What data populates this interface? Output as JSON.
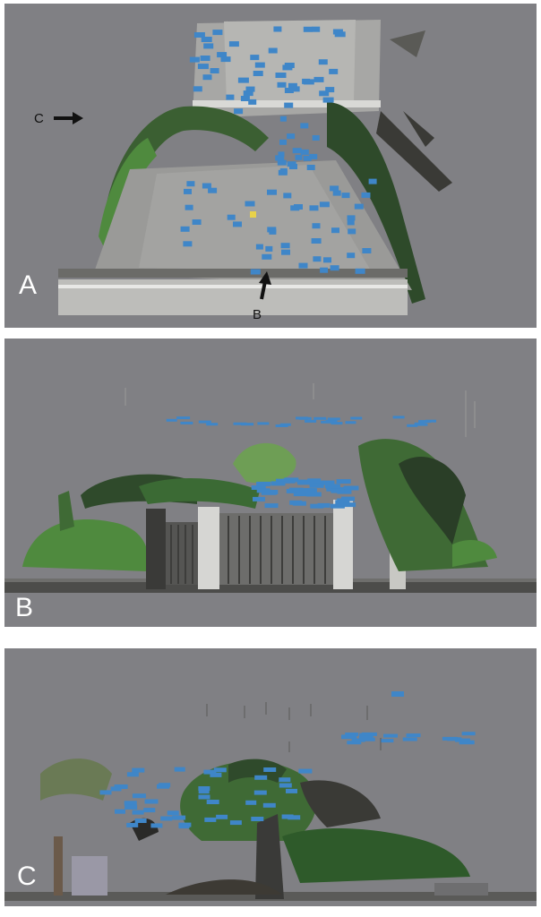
{
  "panels": [
    {
      "letter": "A",
      "description_view": "top"
    },
    {
      "letter": "B",
      "description_view": "front"
    },
    {
      "letter": "C",
      "description_view": "side"
    }
  ],
  "arrows": {
    "c_label": "C",
    "b_label": "B"
  },
  "colors": {
    "background": "#808084",
    "camera_marker": "#3f86c8",
    "selected_camera": "#e8d24a",
    "vegetation": "#3f6a35",
    "pavement": "#9a9a98"
  }
}
